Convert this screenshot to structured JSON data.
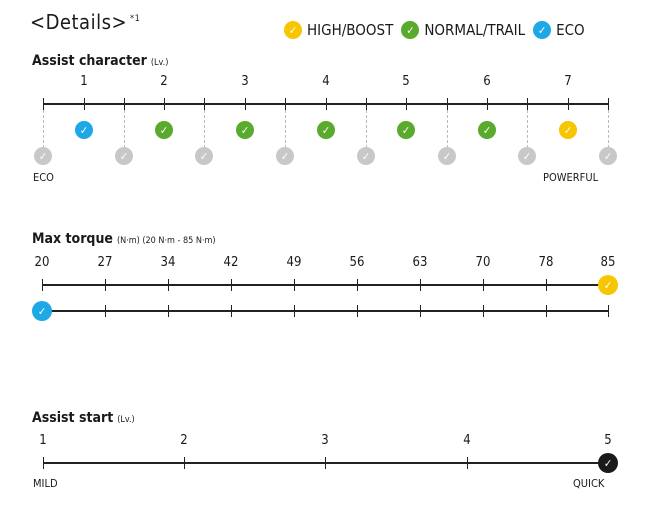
{
  "title": "<Details>",
  "title_note": "*1",
  "colors": {
    "high": "#f7c600",
    "normal": "#5aaa2e",
    "eco": "#1ea8e6",
    "inactive": "#c8c8c8",
    "black": "#1a1a1a"
  },
  "legend": [
    {
      "label": "HIGH/BOOST",
      "color": "#f7c600"
    },
    {
      "label": "NORMAL/TRAIL",
      "color": "#5aaa2e"
    },
    {
      "label": "ECO",
      "color": "#1ea8e6"
    }
  ],
  "check_icon": "check-icon",
  "assist_character": {
    "title": "Assist character",
    "unit": "(Lv.)",
    "levels": [
      "1",
      "2",
      "3",
      "4",
      "5",
      "6",
      "7"
    ],
    "level_modes": [
      "eco",
      "normal",
      "normal",
      "normal",
      "normal",
      "normal",
      "high"
    ],
    "min_label": "ECO",
    "max_label": "POWERFUL"
  },
  "max_torque": {
    "title": "Max torque",
    "unit": "(N·m) (20 N·m - 85 N·m)",
    "ticks": [
      "20",
      "27",
      "34",
      "42",
      "49",
      "56",
      "63",
      "70",
      "78",
      "85"
    ],
    "high_value_index": 9,
    "eco_value_index": 0
  },
  "assist_start": {
    "title": "Assist start",
    "unit": "(Lv.)",
    "levels": [
      "1",
      "2",
      "3",
      "4",
      "5"
    ],
    "selected_index": 4,
    "min_label": "MILD",
    "max_label": "QUICK"
  }
}
